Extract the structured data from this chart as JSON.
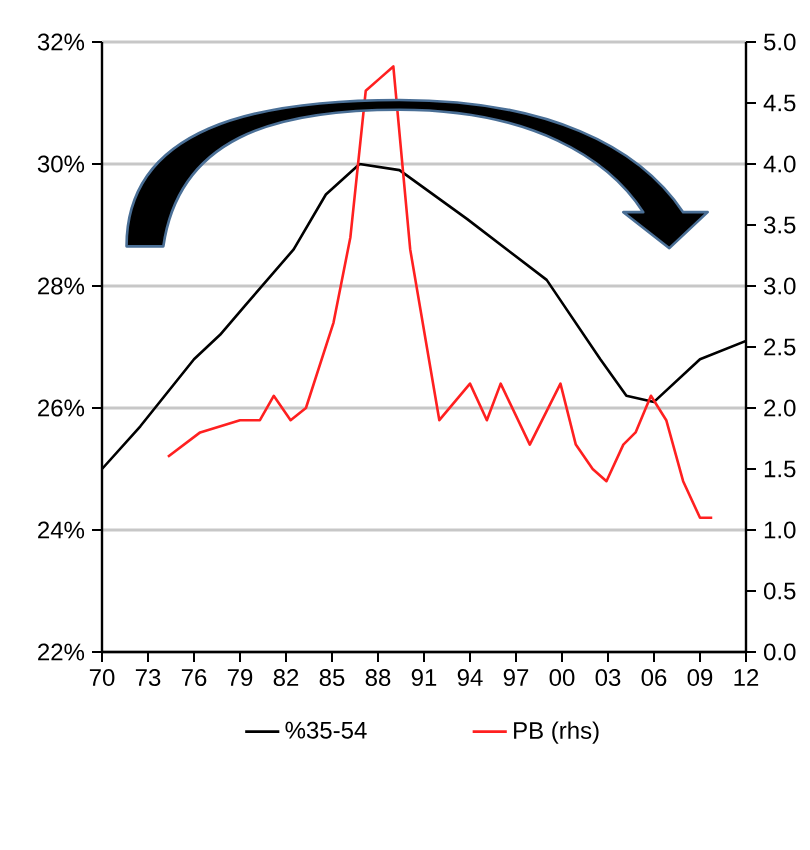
{
  "chart_data": {
    "type": "line",
    "xlim": [
      1970,
      2012
    ],
    "xticks": [
      {
        "value": 1970,
        "label": "70"
      },
      {
        "value": 1973,
        "label": "73"
      },
      {
        "value": 1976,
        "label": "76"
      },
      {
        "value": 1979,
        "label": "79"
      },
      {
        "value": 1982,
        "label": "82"
      },
      {
        "value": 1985,
        "label": "85"
      },
      {
        "value": 1988,
        "label": "88"
      },
      {
        "value": 1991,
        "label": "91"
      },
      {
        "value": 1994,
        "label": "94"
      },
      {
        "value": 1997,
        "label": "97"
      },
      {
        "value": 2000,
        "label": "00"
      },
      {
        "value": 2003,
        "label": "03"
      },
      {
        "value": 2006,
        "label": "06"
      },
      {
        "value": 2009,
        "label": "09"
      },
      {
        "value": 2012,
        "label": "12"
      }
    ],
    "ylim": [
      22,
      32
    ],
    "yticks": [
      {
        "value": 22,
        "label": "22%"
      },
      {
        "value": 24,
        "label": "24%"
      },
      {
        "value": 26,
        "label": "26%"
      },
      {
        "value": 28,
        "label": "28%"
      },
      {
        "value": 30,
        "label": "30%"
      },
      {
        "value": 32,
        "label": "32%"
      }
    ],
    "y2lim": [
      0,
      5
    ],
    "y2ticks": [
      {
        "value": 0,
        "label": "0.0"
      },
      {
        "value": 0.5,
        "label": "0.5"
      },
      {
        "value": 1,
        "label": "1.0"
      },
      {
        "value": 1.5,
        "label": "1.5"
      },
      {
        "value": 2,
        "label": "2.0"
      },
      {
        "value": 2.5,
        "label": "2.5"
      },
      {
        "value": 3,
        "label": "3.0"
      },
      {
        "value": 3.5,
        "label": "3.5"
      },
      {
        "value": 4,
        "label": "4.0"
      },
      {
        "value": 4.5,
        "label": "4.5"
      },
      {
        "value": 5,
        "label": "5.0"
      }
    ],
    "grid": "y",
    "legend": "bottom",
    "series": [
      {
        "name": "%35-54",
        "color": "#000000",
        "x": [
          1970,
          1972.5,
          1976,
          1977.7,
          1979.4,
          1982.5,
          1984.6,
          1986.8,
          1989.4,
          1993.8,
          1999,
          2002.5,
          2004.2,
          2006,
          2009,
          2012
        ],
        "values": [
          25.0,
          25.7,
          26.8,
          27.2,
          27.7,
          28.6,
          29.5,
          30.0,
          29.9,
          29.1,
          28.1,
          26.8,
          26.2,
          26.1,
          26.8,
          27.1
        ]
      },
      {
        "name": "PB (rhs)",
        "color": "#ff2020",
        "axis": "y2",
        "x": [
          1974.3,
          1976.4,
          1979,
          1980.3,
          1981.2,
          1982.3,
          1983.3,
          1985.1,
          1986.2,
          1987.2,
          1988.1,
          1989,
          1990.1,
          1992,
          1994,
          1995.1,
          1996,
          1997.9,
          1999.9,
          2000.9,
          2002,
          2002.9,
          2004,
          2004.8,
          2005.8,
          2006.8,
          2007.9,
          2009,
          2009.8
        ],
        "values": [
          1.6,
          1.8,
          1.9,
          1.9,
          2.1,
          1.9,
          2.0,
          2.7,
          3.4,
          4.6,
          4.7,
          4.8,
          3.3,
          1.9,
          2.2,
          1.9,
          2.2,
          1.7,
          2.2,
          1.7,
          1.5,
          1.4,
          1.7,
          1.8,
          2.1,
          1.9,
          1.4,
          1.1,
          1.1
        ]
      }
    ]
  }
}
